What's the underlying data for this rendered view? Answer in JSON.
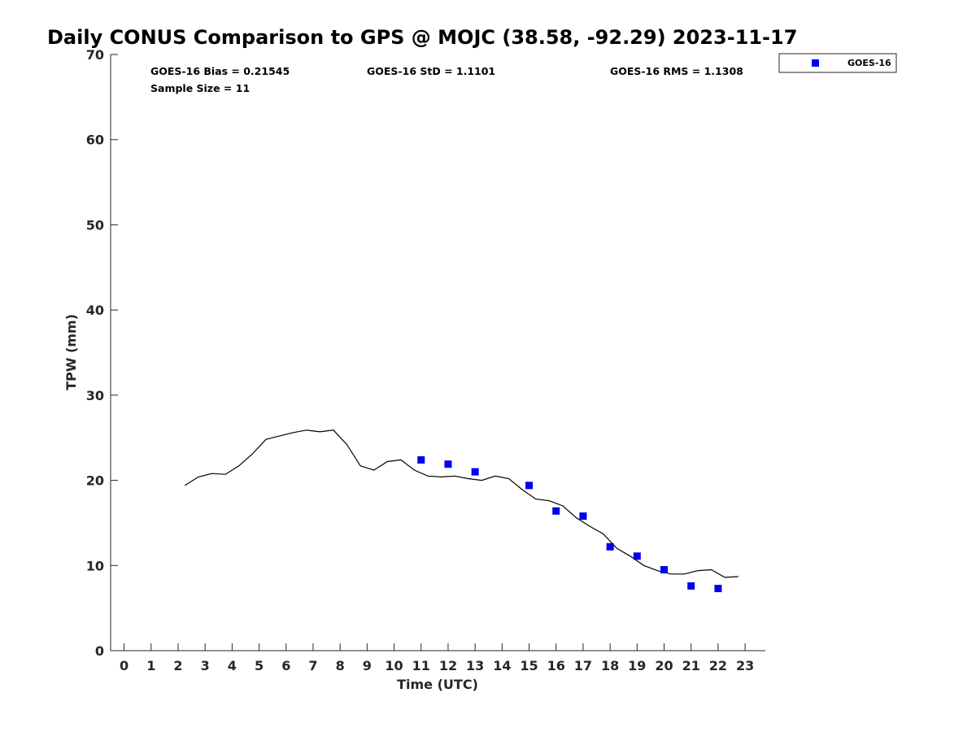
{
  "colors": {
    "marker": "#0000ee",
    "line": "#000000",
    "axis": "#262626"
  },
  "chart_data": {
    "type": "scatter",
    "title": "Daily CONUS Comparison to GPS @ MOJC (38.58, -92.29) 2023-11-17",
    "xlabel": "Time (UTC)",
    "ylabel": "TPW (mm)",
    "xlim": [
      -0.5,
      23.75
    ],
    "ylim": [
      0,
      70
    ],
    "x_ticks": [
      0,
      1,
      2,
      3,
      4,
      5,
      6,
      7,
      8,
      9,
      10,
      11,
      12,
      13,
      14,
      15,
      16,
      17,
      18,
      19,
      20,
      21,
      22,
      23
    ],
    "y_ticks": [
      0,
      10,
      20,
      30,
      40,
      50,
      60,
      70
    ],
    "grid": false,
    "legend_position": "top-right",
    "stats": {
      "bias": "GOES-16 Bias = 0.21545",
      "std": "GOES-16 StD = 1.1101",
      "rms": "GOES-16 RMS = 1.1308",
      "sample": "Sample Size = 11"
    },
    "series": [
      {
        "name": "GOES-16",
        "kind": "markers",
        "x": [
          11,
          12,
          13,
          15,
          16,
          17,
          18,
          19,
          20,
          21,
          22
        ],
        "y": [
          22.4,
          21.9,
          21.0,
          19.4,
          16.4,
          15.8,
          12.2,
          11.1,
          9.5,
          7.6,
          7.3
        ]
      },
      {
        "kind": "line",
        "x": [
          2.25,
          2.75,
          3.25,
          3.75,
          4.25,
          4.75,
          5.25,
          5.75,
          6.25,
          6.75,
          7.25,
          7.75,
          8.25,
          8.75,
          9.25,
          9.75,
          10.25,
          10.75,
          11.25,
          11.75,
          12.25,
          12.75,
          13.25,
          13.75,
          14.25,
          14.75,
          15.25,
          15.75,
          16.25,
          16.75,
          17.25,
          17.75,
          18.25,
          18.75,
          19.25,
          19.75,
          20.25,
          20.75,
          21.25,
          21.75,
          22.25,
          22.75
        ],
        "y": [
          19.4,
          20.4,
          20.8,
          20.7,
          21.7,
          23.1,
          24.8,
          25.2,
          25.6,
          25.9,
          25.7,
          25.9,
          24.2,
          21.7,
          21.2,
          22.2,
          22.4,
          21.2,
          20.5,
          20.4,
          20.5,
          20.2,
          20.0,
          20.5,
          20.2,
          18.9,
          17.8,
          17.6,
          17.0,
          15.6,
          14.6,
          13.7,
          12.0,
          11.1,
          10.0,
          9.4,
          9.0,
          9.0,
          9.4,
          9.5,
          8.6,
          8.7
        ]
      }
    ]
  }
}
